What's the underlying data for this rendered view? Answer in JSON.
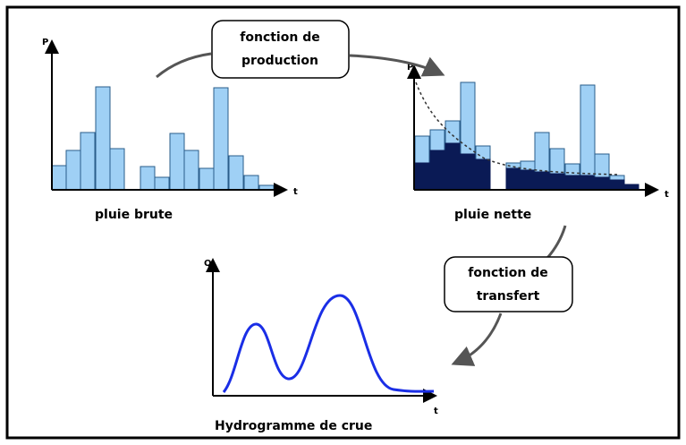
{
  "diagram": {
    "panels": [
      {
        "y_axis": "P",
        "x_axis": "t",
        "label": "pluie brute"
      },
      {
        "y_axis": "P",
        "x_axis": "t",
        "label": "pluie nette"
      },
      {
        "y_axis": "Q",
        "x_axis": "t",
        "label": "Hydrogramme de crue"
      }
    ],
    "functions": [
      {
        "lines": [
          "fonction de",
          "production"
        ]
      },
      {
        "lines": [
          "fonction de",
          "transfert"
        ]
      }
    ]
  }
}
